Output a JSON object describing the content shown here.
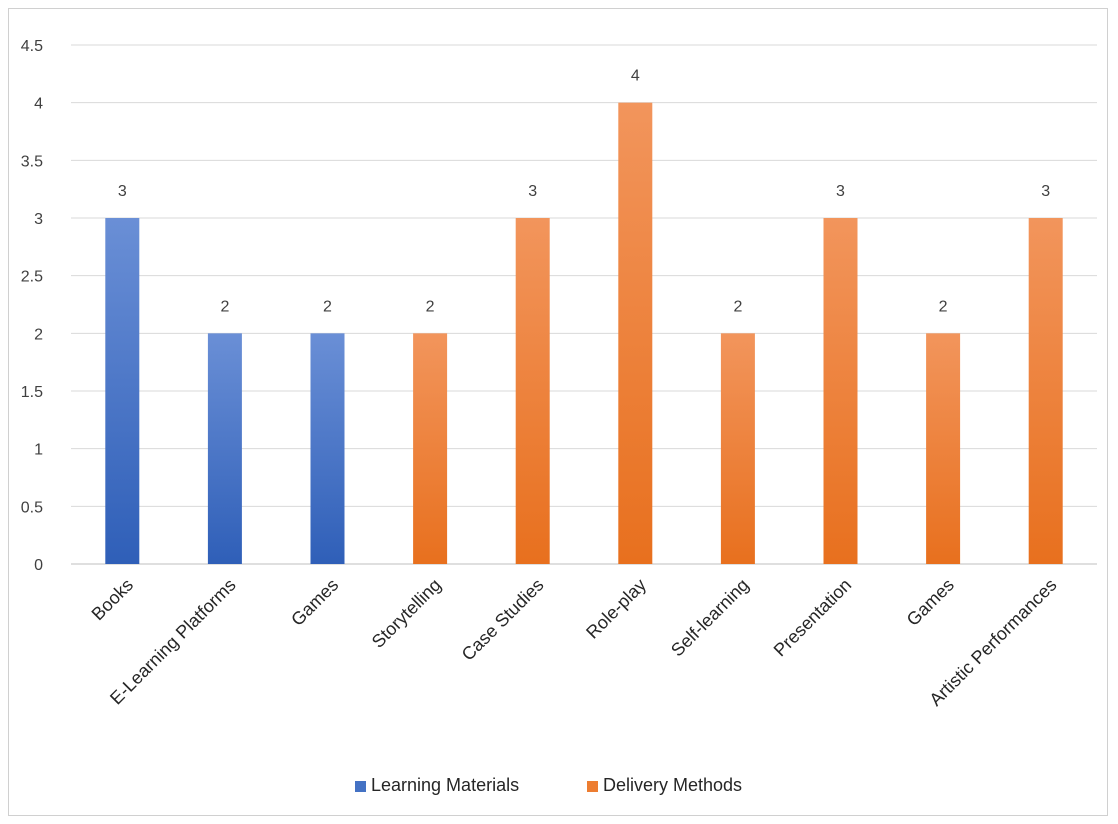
{
  "chart_data": {
    "type": "bar",
    "categories": [
      "Books",
      "E-Learning Platforms",
      "Games",
      "Storytelling",
      "Case Studies",
      "Role-play",
      "Self-learning",
      "Presentation",
      "Games",
      "Artistic Performances"
    ],
    "series": [
      {
        "name": "Learning Materials",
        "color": "#4472C4",
        "values": [
          3,
          2,
          2,
          null,
          null,
          null,
          null,
          null,
          null,
          null
        ]
      },
      {
        "name": "Delivery Methods",
        "color": "#ED7D31",
        "values": [
          null,
          null,
          null,
          2,
          3,
          4,
          2,
          3,
          2,
          3
        ]
      }
    ],
    "ylim": [
      0,
      4.5
    ],
    "yticks": [
      "0",
      "0.5",
      "1",
      "1.5",
      "2",
      "2.5",
      "3",
      "3.5",
      "4",
      "4.5"
    ],
    "grid": true,
    "legend_position": "bottom",
    "data_labels": true
  }
}
